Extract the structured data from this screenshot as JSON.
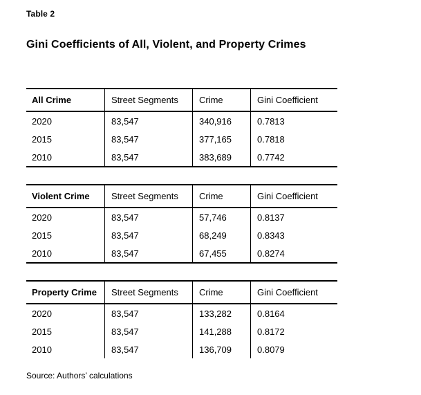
{
  "page": {
    "table_label": "Table 2",
    "title": "Gini Coefficients of All, Violent, and Property Crimes",
    "source": "Source: Authors’ calculations"
  },
  "colors": {
    "text": "#000000",
    "background": "#ffffff",
    "rule": "#000000"
  },
  "tables": [
    {
      "section": "All Crime",
      "header": [
        "All Crime",
        "Street Segments",
        "Crime",
        "Gini Coefficient"
      ],
      "rows": [
        [
          "2020",
          "83,547",
          "340,916",
          "0.7813"
        ],
        [
          "2015",
          "83,547",
          "377,165",
          "0.7818"
        ],
        [
          "2010",
          "83,547",
          "383,689",
          "0.7742"
        ]
      ]
    },
    {
      "section": "Violent Crime",
      "header": [
        "Violent Crime",
        "Street Segments",
        "Crime",
        "Gini Coefficient"
      ],
      "rows": [
        [
          "2020",
          "83,547",
          "57,746",
          "0.8137"
        ],
        [
          "2015",
          "83,547",
          "68,249",
          "0.8343"
        ],
        [
          "2010",
          "83,547",
          "67,455",
          "0.8274"
        ]
      ]
    },
    {
      "section": "Property Crime",
      "header": [
        "Property Crime",
        "Street Segments",
        "Crime",
        "Gini Coefficient"
      ],
      "rows": [
        [
          "2020",
          "83,547",
          "133,282",
          "0.8164"
        ],
        [
          "2015",
          "83,547",
          "141,288",
          "0.8172"
        ],
        [
          "2010",
          "83,547",
          "136,709",
          "0.8079"
        ]
      ]
    }
  ]
}
